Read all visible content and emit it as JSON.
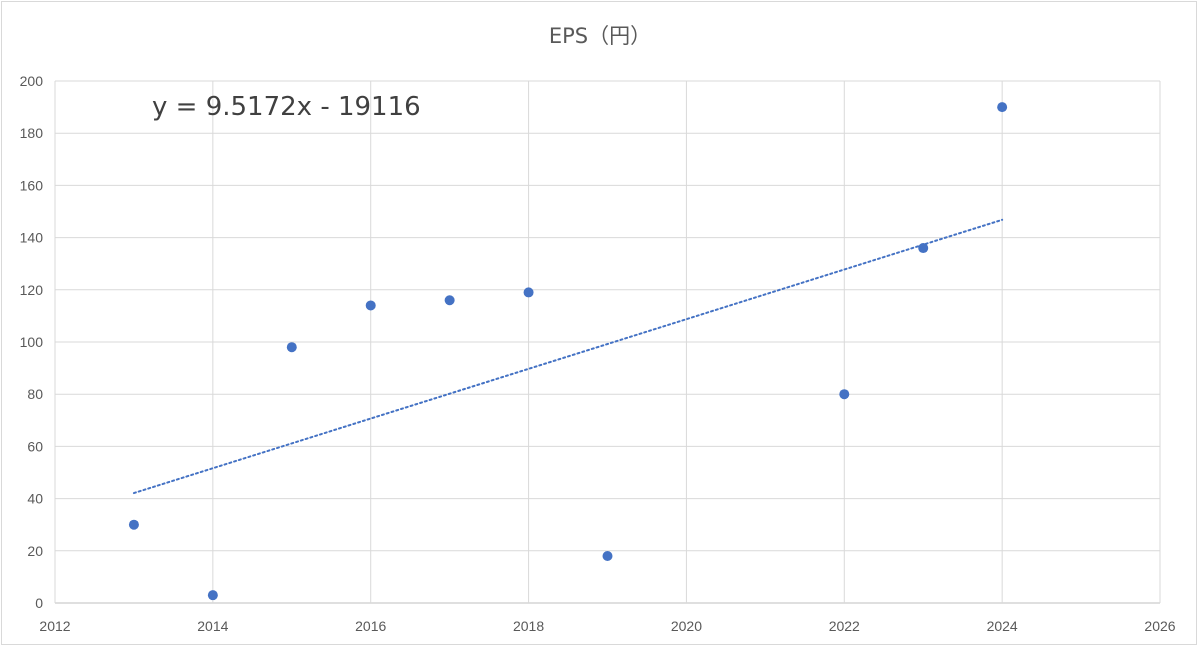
{
  "chart_data": {
    "type": "scatter",
    "title": "EPS（円）",
    "xlabel": "",
    "ylabel": "",
    "xlim": [
      2012,
      2026
    ],
    "ylim": [
      0,
      200
    ],
    "x_ticks": [
      2012,
      2014,
      2016,
      2018,
      2020,
      2022,
      2024,
      2026
    ],
    "y_ticks": [
      0,
      20,
      40,
      60,
      80,
      100,
      120,
      140,
      160,
      180,
      200
    ],
    "grid": true,
    "legend": "none",
    "series": [
      {
        "color": "#4472c4",
        "points": [
          {
            "x": 2013,
            "y": 30
          },
          {
            "x": 2014,
            "y": 3
          },
          {
            "x": 2015,
            "y": 98
          },
          {
            "x": 2016,
            "y": 114
          },
          {
            "x": 2017,
            "y": 116
          },
          {
            "x": 2018,
            "y": 119
          },
          {
            "x": 2019,
            "y": 18
          },
          {
            "x": 2022,
            "y": 80
          },
          {
            "x": 2023,
            "y": 136
          },
          {
            "x": 2024,
            "y": 190
          }
        ]
      }
    ],
    "trendline": {
      "type": "linear",
      "slope": 9.5172,
      "intercept": -19116,
      "x_range": [
        2013,
        2024
      ],
      "style": "dotted",
      "color": "#4472c4",
      "equation_label": "y = 9.5172x - 19116"
    }
  }
}
